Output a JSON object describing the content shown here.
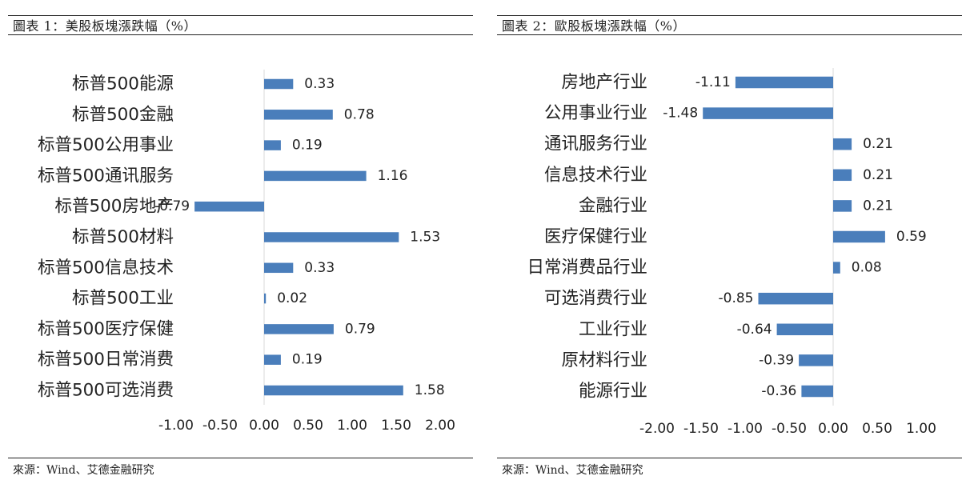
{
  "charts": [
    {
      "title": "圖表 1：美股板塊漲跌幅（%）",
      "source": "來源：Wind、艾德金融研究",
      "chart_data": {
        "type": "bar",
        "orientation": "horizontal",
        "categories": [
          "标普500能源",
          "标普500金融",
          "标普500公用事业",
          "标普500通讯服务",
          "标普500房地产",
          "标普500材料",
          "标普500信息技术",
          "标普500工业",
          "标普500医疗保健",
          "标普500日常消费",
          "标普500可选消费"
        ],
        "values": [
          0.33,
          0.78,
          0.19,
          1.16,
          -0.79,
          1.53,
          0.33,
          0.02,
          0.79,
          0.19,
          1.58
        ],
        "value_labels": [
          "0.33",
          "0.78",
          "0.19",
          "1.16",
          "-0.79",
          "1.53",
          "0.33",
          "0.02",
          "0.79",
          "0.19",
          "1.58"
        ],
        "xlim": [
          -1.0,
          2.0
        ],
        "xticks": [
          "-1.00",
          "-0.50",
          "0.00",
          "0.50",
          "1.00",
          "1.50",
          "2.00"
        ],
        "bar_color": "#4a7ebb",
        "grid": false
      }
    },
    {
      "title": "圖表 2：歐股板塊漲跌幅（%）",
      "source": "來源：Wind、艾德金融研究",
      "chart_data": {
        "type": "bar",
        "orientation": "horizontal",
        "categories": [
          "房地产行业",
          "公用事业行业",
          "通讯服务行业",
          "信息技术行业",
          "金融行业",
          "医疗保健行业",
          "日常消费品行业",
          "可选消费行业",
          "工业行业",
          "原材料行业",
          "能源行业"
        ],
        "values": [
          -1.11,
          -1.48,
          0.21,
          0.21,
          0.21,
          0.59,
          0.08,
          -0.85,
          -0.64,
          -0.39,
          -0.36
        ],
        "value_labels": [
          "-1.11",
          "-1.48",
          "0.21",
          "0.21",
          "0.21",
          "0.59",
          "0.08",
          "-0.85",
          "-0.64",
          "-0.39",
          "-0.36"
        ],
        "xlim": [
          -2.0,
          1.0
        ],
        "xticks": [
          "-2.00",
          "-1.50",
          "-1.00",
          "-0.50",
          "0.00",
          "0.50",
          "1.00"
        ],
        "bar_color": "#4a7ebb",
        "grid": false
      }
    }
  ]
}
